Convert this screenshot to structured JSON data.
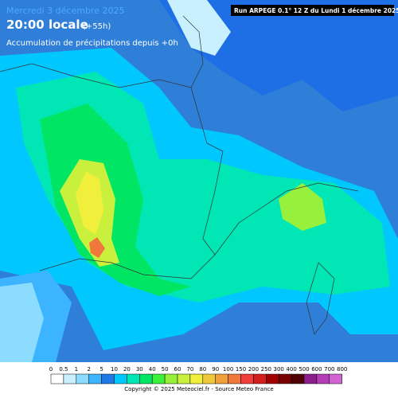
{
  "header": {
    "date": "Mercredi 3 décembre 2025",
    "time": "20:00 locale",
    "lead": "(+55h)",
    "subtitle": "Accumulation de précipitations depuis +0h",
    "run": "Run ARPEGE 0.1° 12 Z du Lundi 1 décembre 2025"
  },
  "legend": {
    "labels": [
      0,
      0.5,
      1,
      2,
      5,
      10,
      20,
      30,
      40,
      50,
      60,
      70,
      80,
      90,
      100,
      150,
      200,
      250,
      300,
      400,
      500,
      600,
      700,
      800
    ],
    "colors": [
      "#ffffff",
      "#c8f0ff",
      "#8cdcff",
      "#3cb4ff",
      "#1e78e6",
      "#00c8ff",
      "#00e6b4",
      "#00e664",
      "#3cf03c",
      "#96f03c",
      "#c8f03c",
      "#f0f03c",
      "#f0c83c",
      "#f0a03c",
      "#f0783c",
      "#f03c3c",
      "#d21e1e",
      "#a00000",
      "#780000",
      "#500000",
      "#8c1e8c",
      "#b43cb4",
      "#d264d2"
    ]
  },
  "footer": {
    "copyright": "Copyright © 2025 Meteociel.fr - Source Meteo France"
  }
}
